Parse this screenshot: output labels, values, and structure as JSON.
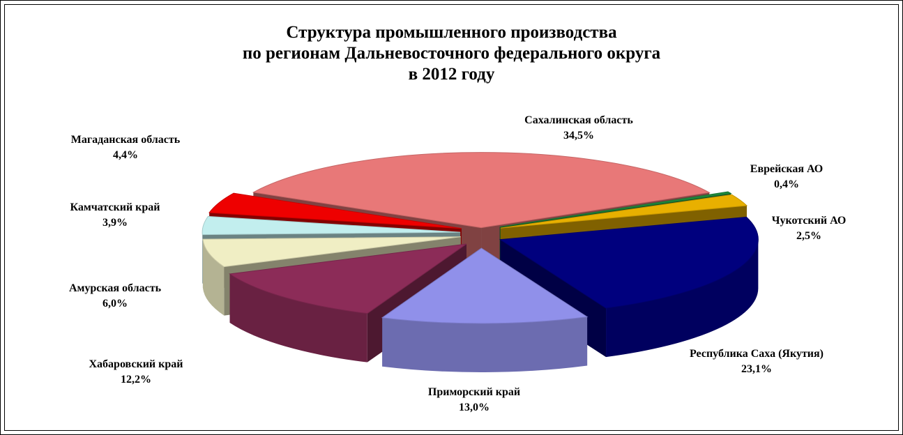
{
  "chart_data": {
    "type": "pie",
    "title": [
      "Структура промышленного производства",
      "по регионам Дальневосточного федерального округа",
      "в 2012 году"
    ],
    "categories": [
      "Сахалинская область",
      "Еврейская АО",
      "Чукотский АО",
      "Республика Саха (Якутия)",
      "Приморский край",
      "Хабаровский край",
      "Амурская область",
      "Камчатский край",
      "Магаданская область"
    ],
    "values": [
      34.5,
      0.4,
      2.5,
      23.1,
      13.0,
      12.2,
      6.0,
      3.9,
      4.4
    ],
    "value_labels": [
      "34,5%",
      "0,4%",
      "2,5%",
      "23,1%",
      "13,0%",
      "12,2%",
      "6,0%",
      "3,9%",
      "4,4%"
    ],
    "colors": [
      "#e87878",
      "#1e8a3c",
      "#e8b000",
      "#00007e",
      "#9090ea",
      "#8c2c58",
      "#f0eec4",
      "#c2eeee",
      "#ee0000"
    ]
  }
}
